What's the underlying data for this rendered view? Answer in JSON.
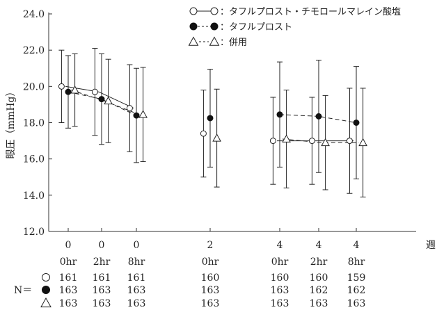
{
  "chart_data": {
    "type": "scatter",
    "ylabel": "眼圧（mmHg）",
    "xunit": "週",
    "ylim": [
      12.0,
      24.0
    ],
    "yticks": [
      "12.0",
      "14.0",
      "16.0",
      "18.0",
      "20.0",
      "22.0",
      "24.0"
    ],
    "categories": [
      {
        "week": "0",
        "time": "0hr"
      },
      {
        "week": "0",
        "time": "2hr"
      },
      {
        "week": "0",
        "time": "8hr"
      },
      {
        "week": "2",
        "time": "0hr"
      },
      {
        "week": "4",
        "time": "0hr"
      },
      {
        "week": "4",
        "time": "2hr"
      },
      {
        "week": "4",
        "time": "8hr"
      }
    ],
    "series": [
      {
        "name": "タフルプロスト・チモロールマレイン酸塩",
        "legend_prefix": "○—○：",
        "marker": "circle-open",
        "line": "solid",
        "mean": [
          20.0,
          19.7,
          18.8,
          17.4,
          17.0,
          17.0,
          17.0
        ],
        "sd": [
          2.0,
          2.4,
          2.4,
          2.4,
          2.4,
          2.4,
          2.9
        ],
        "n": [
          161,
          161,
          161,
          160,
          160,
          160,
          159
        ]
      },
      {
        "name": "タフルプロスト",
        "legend_prefix": "●- -●：",
        "marker": "circle-filled",
        "line": "dashed",
        "mean": [
          19.7,
          19.3,
          18.4,
          18.25,
          18.45,
          18.35,
          18.0
        ],
        "sd": [
          2.0,
          2.5,
          2.6,
          2.7,
          2.9,
          3.1,
          3.1
        ],
        "n": [
          163,
          163,
          163,
          163,
          163,
          162,
          162
        ]
      },
      {
        "name": "併用",
        "legend_prefix": "△ -△：",
        "marker": "triangle-open",
        "line": "dashed",
        "mean": [
          19.8,
          19.2,
          18.45,
          17.15,
          17.1,
          16.9,
          16.9
        ],
        "sd": [
          2.0,
          2.3,
          2.6,
          2.7,
          2.7,
          2.6,
          3.0
        ],
        "n": [
          163,
          163,
          163,
          163,
          163,
          163,
          163
        ]
      }
    ],
    "n_label": "N＝",
    "segments": [
      [
        0,
        2
      ],
      [
        4,
        6
      ]
    ],
    "grid": false
  }
}
